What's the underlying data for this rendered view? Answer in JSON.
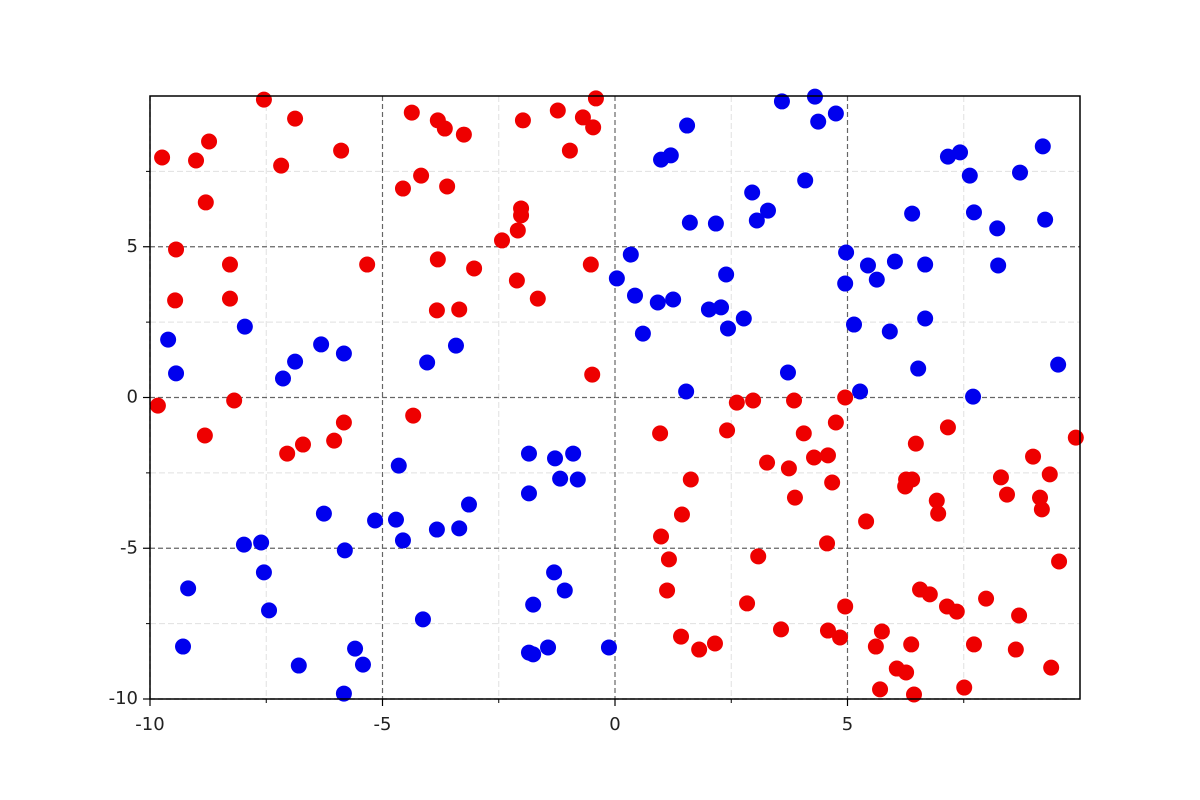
{
  "chart_data": {
    "type": "scatter",
    "xlim": [
      -10,
      10
    ],
    "ylim": [
      -10,
      10
    ],
    "xticks": [
      -10,
      -5,
      0,
      5
    ],
    "yticks": [
      -10,
      -5,
      0,
      5
    ],
    "xminorticks": [
      -7.5,
      -2.5,
      2.5,
      7.5
    ],
    "yminorticks": [
      -7.5,
      -2.5,
      2.5,
      7.5
    ],
    "grid": true,
    "series": [
      {
        "color": "#ee0000",
        "x": [
          -9.83,
          -9.74,
          -9.01,
          -8.73,
          -8.8,
          -9.44,
          -9.46,
          -8.82,
          -8.28,
          -8.28,
          -8.19,
          -7.55,
          -6.88,
          -7.18,
          -5.89,
          -7.05,
          -6.71,
          -6.04,
          -5.83,
          -5.33,
          -4.37,
          -4.56,
          -4.17,
          -3.81,
          -3.66,
          -3.25,
          -3.61,
          -3.81,
          -3.83,
          -3.35,
          -3.03,
          -4.34,
          -2.43,
          -2.09,
          -2.02,
          -2.02,
          -1.98,
          -2.11,
          -1.66,
          -1.23,
          -0.97,
          -0.69,
          -0.47,
          -0.41,
          -0.52,
          -0.49,
          0.97,
          0.99,
          1.16,
          1.12,
          1.44,
          1.63,
          1.42,
          1.81,
          2.15,
          2.41,
          2.62,
          2.97,
          3.08,
          3.27,
          2.84,
          3.57,
          3.74,
          3.87,
          3.85,
          4.06,
          4.28,
          4.58,
          4.67,
          4.75,
          4.56,
          4.58,
          4.84,
          4.95,
          4.95,
          5.4,
          5.61,
          5.74,
          5.7,
          6.06,
          6.26,
          6.37,
          6.43,
          6.24,
          6.26,
          6.39,
          6.47,
          6.56,
          6.77,
          6.92,
          6.95,
          7.16,
          7.14,
          7.35,
          7.51,
          7.72,
          7.98,
          8.3,
          8.43,
          8.62,
          8.69,
          8.99,
          9.14,
          9.18,
          9.35,
          9.38,
          9.55,
          9.91
        ],
        "values": [
          -0.27,
          7.96,
          7.86,
          8.49,
          6.47,
          4.91,
          3.22,
          -1.26,
          4.41,
          3.28,
          -0.1,
          9.88,
          9.25,
          7.69,
          8.19,
          -1.86,
          -1.56,
          -1.43,
          -0.83,
          4.41,
          9.45,
          6.93,
          7.36,
          9.19,
          8.92,
          8.72,
          7.0,
          4.58,
          2.89,
          2.92,
          4.28,
          -0.6,
          5.21,
          5.54,
          6.27,
          6.04,
          9.19,
          3.88,
          3.28,
          9.52,
          8.19,
          9.29,
          8.96,
          9.92,
          4.41,
          0.76,
          -1.19,
          -4.61,
          -5.37,
          -6.4,
          -3.88,
          -2.72,
          -7.93,
          -8.36,
          -8.16,
          -1.09,
          -0.17,
          -0.1,
          -5.27,
          -2.16,
          -6.83,
          -7.69,
          -2.35,
          -3.32,
          -0.1,
          -1.19,
          -1.99,
          -1.92,
          -2.82,
          -0.83,
          -4.84,
          -7.73,
          -7.96,
          -6.93,
          0.0,
          -4.11,
          -8.26,
          -7.76,
          -9.68,
          -8.99,
          -9.12,
          -8.19,
          -9.85,
          -2.95,
          -2.72,
          -2.72,
          -1.53,
          -6.37,
          -6.53,
          -3.42,
          -3.85,
          -0.99,
          -6.93,
          -7.1,
          -9.62,
          -8.19,
          -6.67,
          -2.65,
          -3.22,
          -8.36,
          -7.23,
          -1.96,
          -3.32,
          -3.71,
          -2.55,
          -8.96,
          -5.44,
          -1.33
        ]
      },
      {
        "color": "#0000ee",
        "x": [
          -9.61,
          -9.44,
          -9.18,
          -9.29,
          -7.96,
          -7.98,
          -7.61,
          -7.55,
          -7.44,
          -7.14,
          -6.88,
          -6.8,
          -6.32,
          -6.26,
          -5.83,
          -5.81,
          -5.59,
          -5.42,
          -5.83,
          -5.16,
          -4.65,
          -4.71,
          -4.56,
          -4.04,
          -4.13,
          -3.83,
          -3.42,
          -3.35,
          -3.14,
          -1.85,
          -1.85,
          -1.29,
          -1.18,
          -0.9,
          -0.8,
          -1.31,
          -1.76,
          -1.08,
          -1.85,
          -1.76,
          -1.44,
          -0.13,
          0.04,
          0.34,
          0.43,
          0.6,
          0.92,
          1.25,
          0.99,
          1.2,
          1.55,
          1.61,
          1.53,
          2.02,
          2.28,
          2.17,
          2.39,
          2.43,
          2.77,
          2.95,
          3.05,
          3.29,
          3.59,
          3.72,
          4.09,
          4.3,
          4.37,
          4.75,
          4.97,
          4.95,
          5.14,
          5.27,
          5.44,
          5.63,
          5.91,
          6.02,
          6.39,
          6.52,
          6.67,
          6.67,
          7.16,
          7.42,
          7.63,
          7.72,
          7.7,
          8.22,
          8.24,
          8.71,
          9.2,
          9.25,
          9.53
        ],
        "values": [
          1.92,
          0.8,
          -6.33,
          -8.26,
          2.35,
          -4.88,
          -4.81,
          -5.8,
          -7.06,
          0.63,
          1.19,
          -8.89,
          1.76,
          -3.85,
          1.46,
          -5.07,
          -8.33,
          -8.86,
          -9.82,
          -4.08,
          -2.26,
          -4.05,
          -4.74,
          1.16,
          -7.36,
          -4.38,
          1.72,
          -4.34,
          -3.55,
          -1.86,
          -3.18,
          -2.02,
          -2.69,
          -1.86,
          -2.72,
          -5.8,
          -6.87,
          -6.4,
          -8.46,
          -8.52,
          -8.29,
          -8.29,
          3.95,
          4.74,
          3.38,
          2.12,
          3.15,
          3.25,
          7.89,
          8.03,
          9.02,
          5.8,
          0.2,
          2.92,
          2.99,
          5.77,
          4.08,
          2.29,
          2.62,
          6.8,
          5.87,
          6.2,
          9.82,
          0.83,
          7.2,
          9.98,
          9.15,
          9.42,
          4.81,
          3.78,
          2.42,
          0.2,
          4.38,
          3.91,
          2.19,
          4.51,
          6.1,
          0.96,
          4.41,
          2.62,
          7.99,
          8.13,
          7.36,
          6.14,
          0.03,
          5.61,
          4.38,
          7.46,
          8.33,
          5.9,
          1.09
        ]
      }
    ]
  }
}
